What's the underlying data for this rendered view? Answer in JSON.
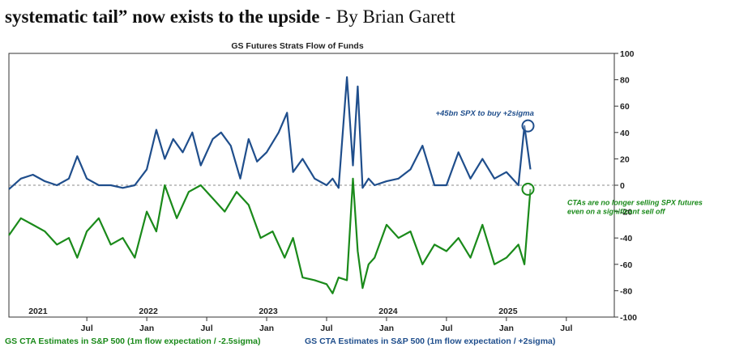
{
  "headline": {
    "text": "systematic tail” now exists to the upside",
    "separator": " - ",
    "author": "By Brian Garett"
  },
  "chart_data": {
    "type": "line",
    "title": "GS Futures Strats Flow of Funds",
    "xlabel": "",
    "ylabel": "",
    "ylim": [
      -100,
      100
    ],
    "yticks": [
      100,
      80,
      60,
      40,
      20,
      0,
      -20,
      -40,
      -60,
      -80,
      -100
    ],
    "ytick_labels": [
      "100",
      "80",
      "60",
      "40",
      "20",
      "0",
      "-20",
      "-40",
      "-60",
      "-80",
      "-100"
    ],
    "xlim": [
      2020.85,
      2025.9
    ],
    "year_labels": [
      {
        "label": "2021",
        "x": 2021.0
      },
      {
        "label": "2022",
        "x": 2022.0
      },
      {
        "label": "2023",
        "x": 2023.0
      },
      {
        "label": "2024",
        "x": 2024.0
      },
      {
        "label": "2025",
        "x": 2025.0
      }
    ],
    "month_ticks": [
      {
        "label": "Jul",
        "x": 2021.5
      },
      {
        "label": "Jan",
        "x": 2022.0
      },
      {
        "label": "Jul",
        "x": 2022.5
      },
      {
        "label": "Jan",
        "x": 2023.0
      },
      {
        "label": "Jul",
        "x": 2023.5
      },
      {
        "label": "Jan",
        "x": 2024.0
      },
      {
        "label": "Jul",
        "x": 2024.5
      },
      {
        "label": "Jan",
        "x": 2025.0
      },
      {
        "label": "Jul",
        "x": 2025.5
      }
    ],
    "grid": false,
    "zero_line": "dashed",
    "legend_placement": "bottom",
    "series": [
      {
        "name": "GS CTA Estimates in S&P 500 (1m flow expectation / -2.5sigma)",
        "color": "#1a8a1a",
        "x": [
          2020.85,
          2020.95,
          2021.05,
          2021.15,
          2021.25,
          2021.35,
          2021.42,
          2021.5,
          2021.6,
          2021.7,
          2021.8,
          2021.9,
          2022.0,
          2022.08,
          2022.15,
          2022.25,
          2022.35,
          2022.45,
          2022.55,
          2022.65,
          2022.75,
          2022.85,
          2022.95,
          2023.05,
          2023.15,
          2023.22,
          2023.3,
          2023.4,
          2023.5,
          2023.55,
          2023.6,
          2023.67,
          2023.72,
          2023.76,
          2023.8,
          2023.85,
          2023.9,
          2024.0,
          2024.1,
          2024.2,
          2024.3,
          2024.4,
          2024.5,
          2024.6,
          2024.7,
          2024.8,
          2024.9,
          2025.0,
          2025.1,
          2025.15,
          2025.2
        ],
        "values": [
          -38,
          -25,
          -30,
          -35,
          -45,
          -40,
          -55,
          -35,
          -25,
          -45,
          -40,
          -55,
          -20,
          -35,
          0,
          -25,
          -5,
          0,
          -10,
          -20,
          -5,
          -15,
          -40,
          -35,
          -55,
          -40,
          -70,
          -72,
          -75,
          -82,
          -70,
          -72,
          5,
          -50,
          -78,
          -60,
          -55,
          -30,
          -40,
          -35,
          -60,
          -45,
          -50,
          -40,
          -55,
          -30,
          -60,
          -55,
          -45,
          -60,
          -3
        ]
      },
      {
        "name": "GS CTA Estimates in S&P 500 (1m flow expectation / +2sigma)",
        "color": "#1f4e8c",
        "x": [
          2020.85,
          2020.95,
          2021.05,
          2021.15,
          2021.25,
          2021.35,
          2021.42,
          2021.5,
          2021.6,
          2021.7,
          2021.8,
          2021.9,
          2022.0,
          2022.08,
          2022.15,
          2022.22,
          2022.3,
          2022.38,
          2022.45,
          2022.55,
          2022.62,
          2022.7,
          2022.78,
          2022.85,
          2022.92,
          2023.0,
          2023.1,
          2023.17,
          2023.22,
          2023.3,
          2023.4,
          2023.5,
          2023.55,
          2023.6,
          2023.67,
          2023.72,
          2023.76,
          2023.8,
          2023.85,
          2023.9,
          2024.0,
          2024.1,
          2024.2,
          2024.3,
          2024.4,
          2024.5,
          2024.6,
          2024.7,
          2024.8,
          2024.9,
          2025.0,
          2025.1,
          2025.15,
          2025.2
        ],
        "values": [
          -3,
          5,
          8,
          3,
          0,
          5,
          22,
          5,
          0,
          0,
          -2,
          0,
          12,
          42,
          20,
          35,
          25,
          40,
          15,
          35,
          40,
          30,
          5,
          35,
          18,
          25,
          40,
          55,
          10,
          20,
          5,
          0,
          5,
          -2,
          82,
          15,
          75,
          -2,
          5,
          0,
          3,
          5,
          12,
          30,
          0,
          0,
          25,
          5,
          20,
          5,
          10,
          0,
          45,
          12
        ]
      }
    ],
    "annotations": [
      {
        "text": "+45bn SPX to buy +2sigma",
        "x": 2025.18,
        "y": 45,
        "color": "#1f4e8c"
      },
      {
        "text": "CTAs are no longer selling SPX futures",
        "x": 2025.18,
        "y": -3,
        "color": "#1a8a1a"
      },
      {
        "text": "even on a significant sell off",
        "x": 2025.18,
        "y": -3,
        "color": "#1a8a1a"
      }
    ]
  }
}
